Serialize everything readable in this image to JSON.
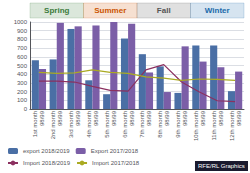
{
  "chart_data": {
    "type": "bar",
    "categories": [
      "1st month\n98/99",
      "2nd month\n98/99",
      "3rd month\n98/99",
      "4th month\n98/99",
      "5th month\n98/99",
      "6th month\n98/99",
      "7th month\n98/99",
      "8th month\n98/99",
      "9th month\n98/99",
      "10th month\n98/99",
      "11th month\n98/99",
      "12th month\n98/99"
    ],
    "series": [
      {
        "name": "export 2018/2019",
        "type": "bar",
        "color": "#4a6fa5",
        "values": [
          560,
          570,
          920,
          330,
          170,
          810,
          630,
          490,
          185,
          730,
          730,
          205
        ]
      },
      {
        "name": "Export 2017/2018",
        "type": "bar",
        "color": "#7b5ea7",
        "values": [
          460,
          990,
          950,
          960,
          1000,
          980,
          420,
          195,
          720,
          545,
          480,
          430
        ]
      },
      {
        "name": "Import 2018/2019",
        "type": "line",
        "color": "#8b3060",
        "values": [
          320,
          320,
          310,
          260,
          215,
          205,
          450,
          510,
          310,
          195,
          95,
          85
        ]
      },
      {
        "name": "Import 2017/2018",
        "type": "line",
        "color": "#aaaa22",
        "values": [
          420,
          410,
          415,
          450,
          420,
          410,
          370,
          355,
          330,
          345,
          340,
          330
        ]
      }
    ],
    "annotations": [
      {
        "text": "Spring",
        "color": "#3a7a3a"
      },
      {
        "text": "Summer",
        "color": "#cc5500"
      },
      {
        "text": "Fall",
        "color": "#555555"
      },
      {
        "text": "Winter",
        "color": "#1a6aaa"
      },
      {
        "text": "RFE/RL Graphics"
      }
    ],
    "ylim": [
      0,
      1000
    ],
    "yticks": [
      0,
      100,
      200,
      300,
      400,
      500,
      600,
      700,
      800,
      900,
      1000
    ],
    "grid": true,
    "legend": "bottom"
  }
}
